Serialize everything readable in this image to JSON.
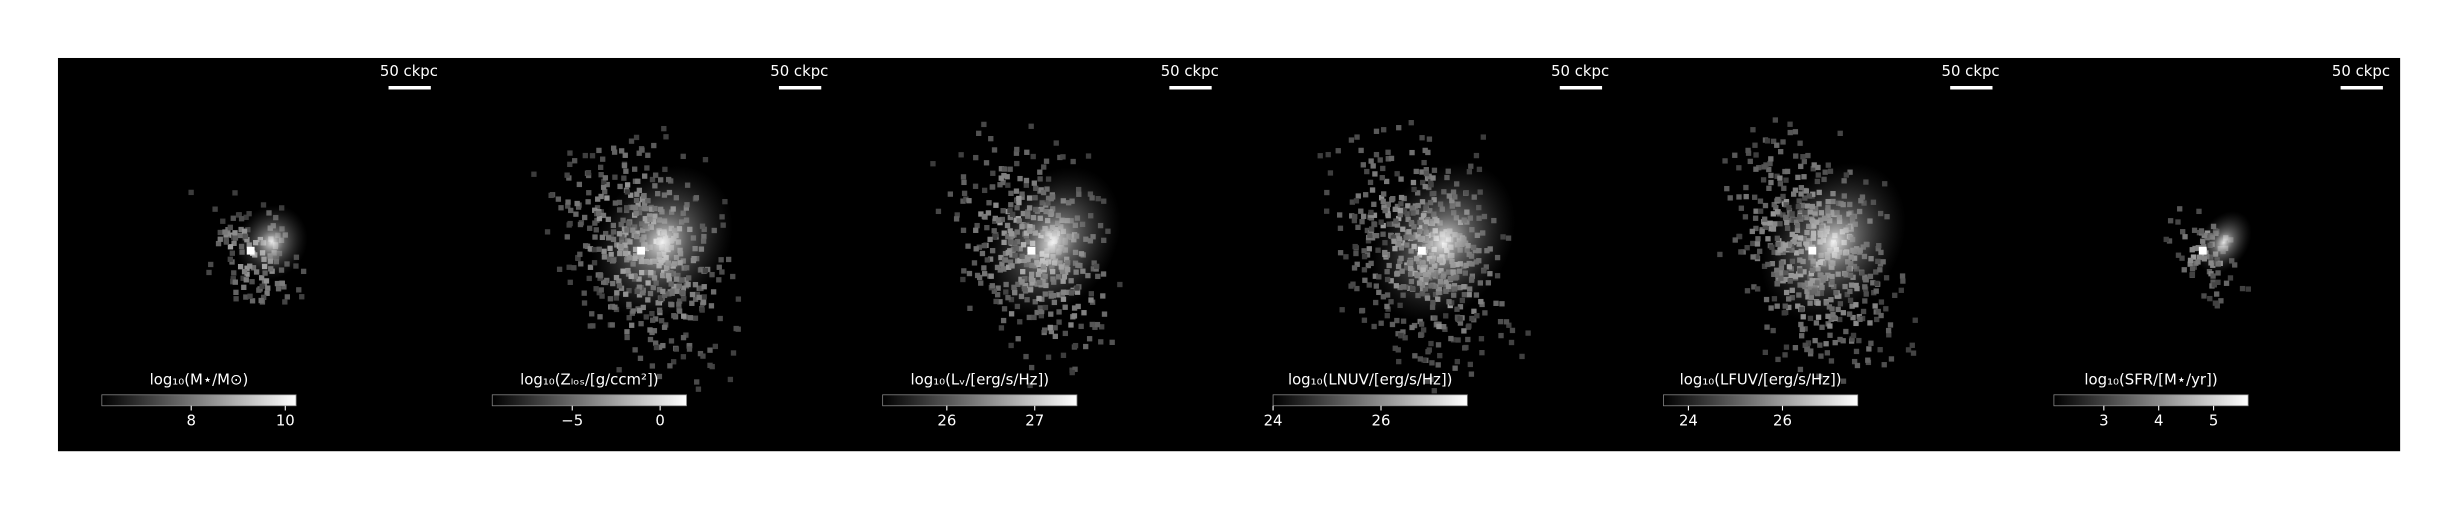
{
  "panels": [
    {
      "label": "log₁₀(M⋆/M⊙)",
      "scalebar": "50 ckpc",
      "clim": [
        6.1,
        10.23
      ],
      "cticks": [
        8,
        10
      ]
    },
    {
      "label": "log₁₀(Zₗₒₛ/[g/ccm²])",
      "scalebar": "50 ckpc",
      "clim": [
        -9.55,
        1.5
      ],
      "cticks": [
        {
          "value": -5,
          "label": "−5"
        },
        0
      ]
    },
    {
      "label": "log₁₀(Lᵥ/[erg/s/Hz])",
      "scalebar": "50 ckpc",
      "clim": [
        25.27,
        27.48
      ],
      "cticks": [
        26,
        27
      ]
    },
    {
      "label": "log₁₀(LNUV/[erg/s/Hz])",
      "scalebar": "50 ckpc",
      "clim": [
        24,
        27.6
      ],
      "cticks": [
        24,
        26
      ]
    },
    {
      "label": "log₁₀(LFUV/[erg/s/Hz])",
      "scalebar": "50 ckpc",
      "clim": [
        23.47,
        27.6
      ],
      "cticks": [
        24,
        26
      ]
    },
    {
      "label": "log₁₀(SFR/[M⋆/yr])",
      "scalebar": "50 ckpc",
      "clim": [
        2.09,
        5.63
      ],
      "cticks": [
        3,
        4,
        5
      ]
    }
  ]
}
